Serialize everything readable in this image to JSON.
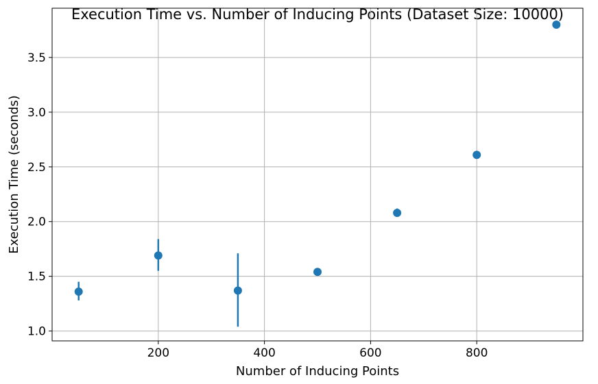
{
  "chart_data": {
    "type": "scatter",
    "title": "Execution Time vs. Number of Inducing Points (Dataset Size: 10000)",
    "xlabel": "Number of Inducing Points",
    "ylabel": "Execution Time (seconds)",
    "xlim": [
      0,
      1000
    ],
    "ylim": [
      0.91,
      3.95
    ],
    "xticks": [
      200,
      400,
      600,
      800
    ],
    "yticks": [
      1.0,
      1.5,
      2.0,
      2.5,
      3.0,
      3.5
    ],
    "xtick_labels": [
      "200",
      "400",
      "600",
      "800"
    ],
    "ytick_labels": [
      "1.0",
      "1.5",
      "2.0",
      "2.5",
      "3.0",
      "3.5"
    ],
    "grid": true,
    "color": "#1f77b4",
    "points": [
      {
        "x": 50,
        "y": 1.36,
        "err_low": 1.28,
        "err_high": 1.45
      },
      {
        "x": 200,
        "y": 1.69,
        "err_low": 1.55,
        "err_high": 1.84
      },
      {
        "x": 350,
        "y": 1.37,
        "err_low": 1.04,
        "err_high": 1.71
      },
      {
        "x": 500,
        "y": 1.54,
        "err_low": 1.53,
        "err_high": 1.55
      },
      {
        "x": 650,
        "y": 2.08,
        "err_low": 2.06,
        "err_high": 2.12
      },
      {
        "x": 800,
        "y": 2.61,
        "err_low": 2.6,
        "err_high": 2.62
      },
      {
        "x": 950,
        "y": 3.8,
        "err_low": 3.79,
        "err_high": 3.81
      }
    ]
  }
}
